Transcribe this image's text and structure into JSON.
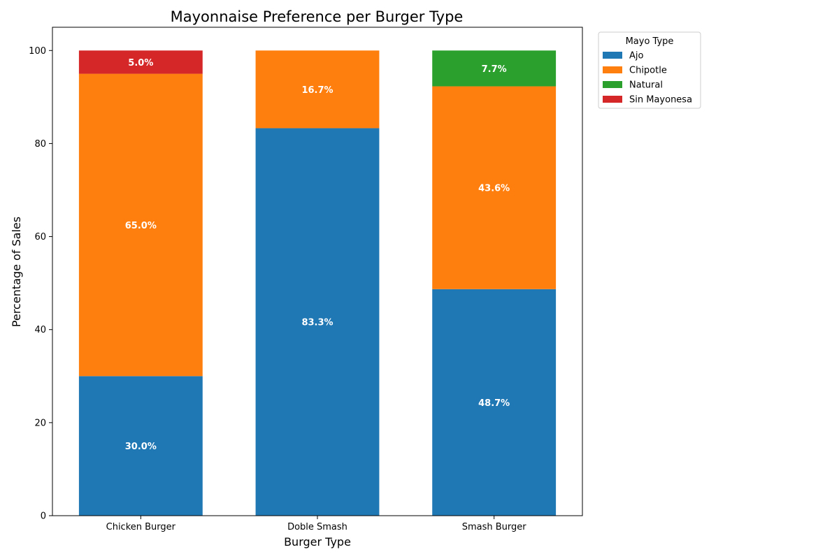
{
  "chart_data": {
    "type": "bar",
    "stacked": true,
    "title": "Mayonnaise Preference per Burger Type",
    "xlabel": "Burger Type",
    "ylabel": "Percentage of Sales",
    "ylim": [
      0,
      105
    ],
    "yticks": [
      0,
      20,
      40,
      60,
      80,
      100
    ],
    "grid": false,
    "legend_title": "Mayo Type",
    "legend_position": "outside-top-right",
    "categories": [
      "Chicken Burger",
      "Doble Smash",
      "Smash Burger"
    ],
    "series": [
      {
        "name": "Ajo",
        "color": "#1f77b4",
        "values": [
          30.0,
          83.3,
          48.7
        ],
        "labels": [
          "30.0%",
          "83.3%",
          "48.7%"
        ]
      },
      {
        "name": "Chipotle",
        "color": "#ff7f0e",
        "values": [
          65.0,
          16.7,
          43.6
        ],
        "labels": [
          "65.0%",
          "16.7%",
          "43.6%"
        ]
      },
      {
        "name": "Natural",
        "color": "#2ca02c",
        "values": [
          0,
          0,
          7.7
        ],
        "labels": [
          "",
          "",
          "7.7%"
        ]
      },
      {
        "name": "Sin Mayonesa",
        "color": "#d62728",
        "values": [
          5.0,
          0,
          0
        ],
        "labels": [
          "5.0%",
          "",
          ""
        ]
      }
    ]
  }
}
